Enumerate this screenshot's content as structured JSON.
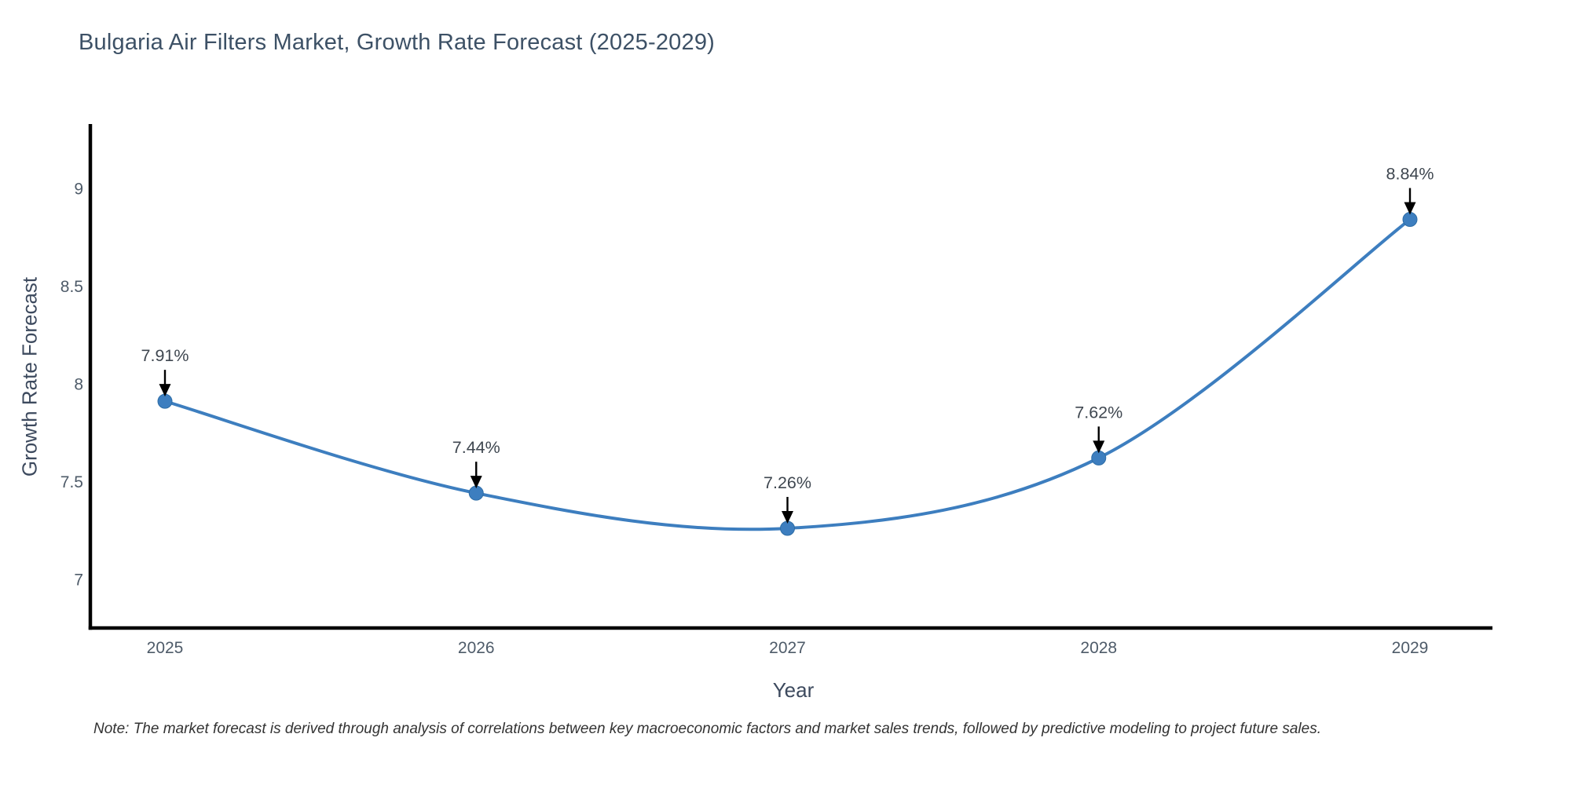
{
  "page": {
    "note": "Note: The market forecast is derived through analysis of correlations between key macroeconomic factors and market sales trends, followed by predictive modeling to project future sales."
  },
  "colors": {
    "background": "#ffffff",
    "line": "#3d7ebf",
    "marker_fill": "#3d7ebf",
    "marker_edge": "#2e6da6",
    "axis_line": "#000000",
    "title_text": "#3d5166",
    "axis_title_text": "#3d4a5e",
    "tick_text": "#4e5b69",
    "annotation_text": "#3f4750",
    "arrow": "#000000",
    "note_text": "#333333"
  },
  "chart_data": {
    "type": "line",
    "title": "Bulgaria Air Filters Market, Growth Rate Forecast (2025-2029)",
    "x": [
      2025,
      2026,
      2027,
      2028,
      2029
    ],
    "values": [
      7.91,
      7.44,
      7.26,
      7.62,
      8.84
    ],
    "point_labels": [
      "7.91%",
      "7.44%",
      "7.26%",
      "7.62%",
      "8.84%"
    ],
    "series_name": "Growth Rate Forecast",
    "xlabel": "Year",
    "ylabel": "Growth Rate Forecast",
    "xtick_labels": [
      "2025",
      "2026",
      "2027",
      "2028",
      "2029"
    ],
    "yticks": [
      7,
      7.5,
      8,
      8.5,
      9
    ],
    "ytick_labels": [
      "7",
      "7.5",
      "8",
      "8.5",
      "9"
    ],
    "ylim": [
      6.75,
      9.32
    ],
    "line_shape": "spline",
    "grid": false,
    "legend_position": "none",
    "annotation_style": "value-label-with-down-arrow"
  }
}
